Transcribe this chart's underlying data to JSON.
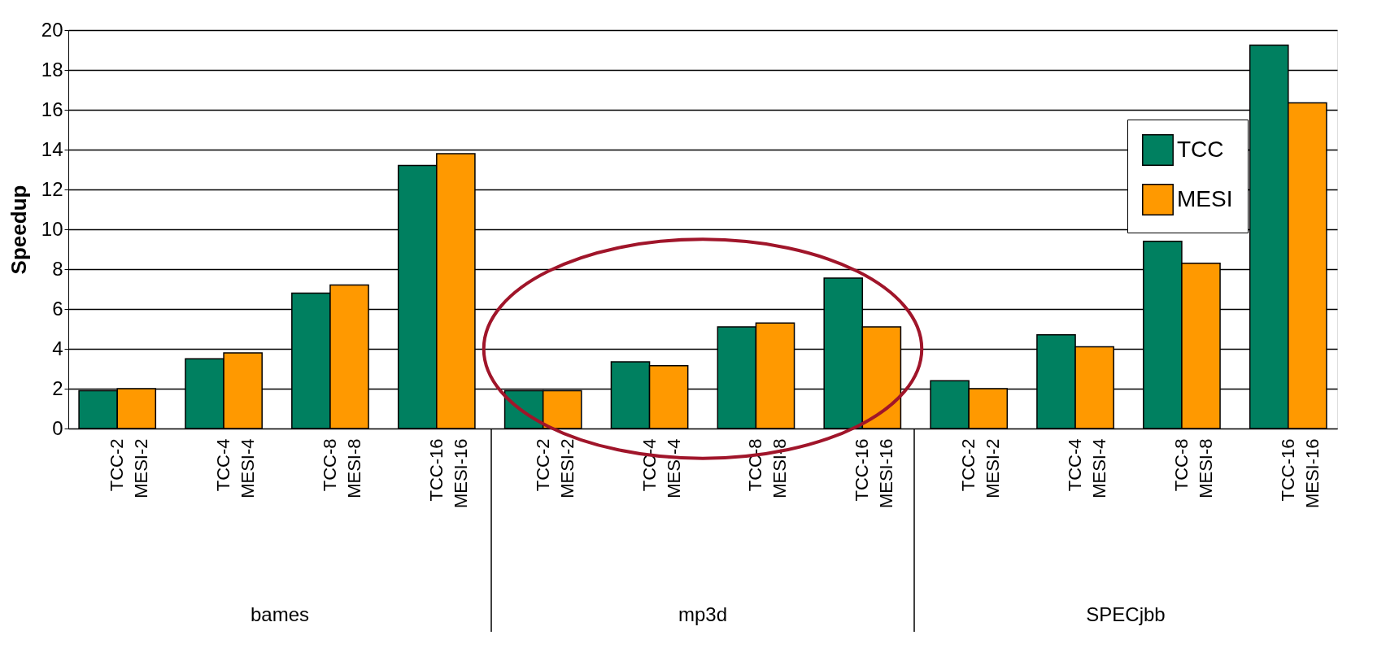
{
  "chart_data": {
    "type": "bar",
    "ylabel": "Speedup",
    "categories": [
      "TCC-2\nMESI-2",
      "TCC-4\nMESI-4",
      "TCC-8\nMESI-8",
      "TCC-16\nMESI-16",
      "TCC-2\nMESI-2",
      "TCC-4\nMESI-4",
      "TCC-8\nMESI-8",
      "TCC-16\nMESI-16",
      "TCC-2\nMESI-2",
      "TCC-4\nMESI-4",
      "TCC-8\nMESI-8",
      "TCC-16\nMESI-16"
    ],
    "series": [
      {
        "name": "TCC",
        "color": "#008060",
        "values": [
          1.9,
          3.5,
          6.8,
          13.2,
          1.9,
          3.35,
          5.1,
          7.55,
          2.4,
          4.7,
          9.4,
          19.25
        ]
      },
      {
        "name": "MESI",
        "color": "#ff9900",
        "values": [
          2.0,
          3.8,
          7.2,
          13.8,
          1.9,
          3.15,
          5.3,
          5.1,
          2.0,
          4.1,
          8.3,
          16.35
        ]
      }
    ],
    "annotations": [
      "bames",
      "mp3d",
      "SPECjbb"
    ],
    "ylim": [
      0,
      20
    ],
    "yticks": [
      0,
      2,
      4,
      6,
      8,
      10,
      12,
      14,
      16,
      18,
      20
    ],
    "grid": "y",
    "legend": "top right"
  }
}
